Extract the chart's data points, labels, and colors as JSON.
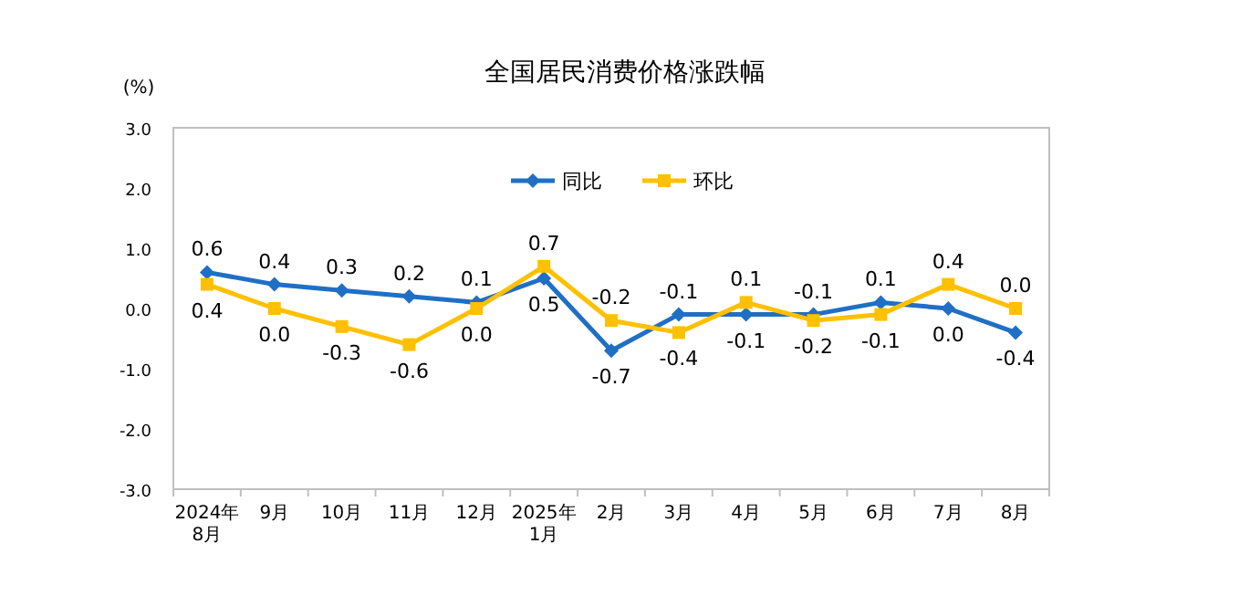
{
  "chart_data": {
    "type": "line",
    "title": "全国居民消费价格涨跌幅",
    "ylabel": "(%)",
    "categories": [
      "2024年\n8月",
      "9月",
      "10月",
      "11月",
      "12月",
      "2025年\n1月",
      "2月",
      "3月",
      "4月",
      "5月",
      "6月",
      "7月",
      "8月"
    ],
    "series": [
      {
        "name": "同比",
        "color": "#1f6fc5",
        "marker": "diamond",
        "values": [
          0.6,
          0.4,
          0.3,
          0.2,
          0.1,
          0.5,
          -0.7,
          -0.1,
          -0.1,
          -0.1,
          0.1,
          0.0,
          -0.4
        ],
        "value_labels": [
          "0.6",
          "0.4",
          "0.3",
          "0.2",
          "0.1",
          "0.5",
          "-0.7",
          "-0.1",
          "-0.1",
          "-0.1",
          "0.1",
          "0.0",
          "-0.4"
        ]
      },
      {
        "name": "环比",
        "color": "#ffc000",
        "marker": "square",
        "values": [
          0.4,
          0.0,
          -0.3,
          -0.6,
          0.0,
          0.7,
          -0.2,
          -0.4,
          0.1,
          -0.2,
          -0.1,
          0.4,
          0.0
        ],
        "value_labels": [
          "0.4",
          "0.0",
          "-0.3",
          "-0.6",
          "0.0",
          "0.7",
          "-0.2",
          "-0.4",
          "0.1",
          "-0.2",
          "-0.1",
          "0.4",
          "0.0"
        ]
      }
    ],
    "ylim": [
      -3,
      3
    ],
    "yticks": [
      {
        "value": -3,
        "label": "-3.0"
      },
      {
        "value": -2,
        "label": "-2.0"
      },
      {
        "value": -1,
        "label": "-1.0"
      },
      {
        "value": 0,
        "label": "0.0"
      },
      {
        "value": 1,
        "label": "1.0"
      },
      {
        "value": 2,
        "label": "2.0"
      },
      {
        "value": 3,
        "label": "3.0"
      }
    ],
    "legend": "top",
    "grid": false
  }
}
